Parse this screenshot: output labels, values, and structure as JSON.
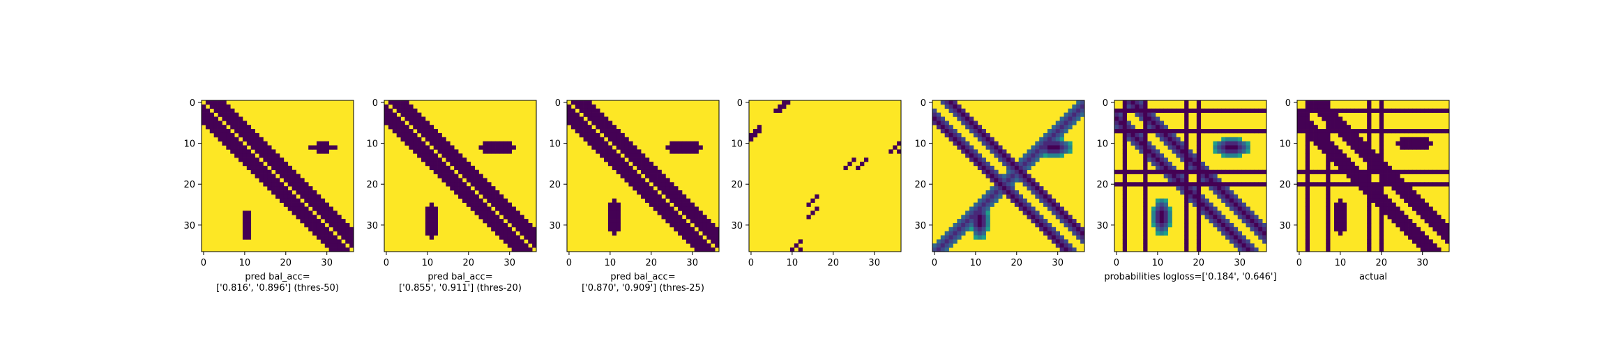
{
  "figure": {
    "colors": {
      "low": "#440154",
      "high": "#fde725",
      "viridis": [
        "#440154",
        "#482878",
        "#3e4989",
        "#31688e",
        "#26828e",
        "#1f9e89",
        "#35b779",
        "#6ece58",
        "#b5de2b",
        "#fde725"
      ]
    }
  },
  "chart_data": [
    {
      "type": "heatmap",
      "colormap": "viridis",
      "size": 37,
      "xticks": [
        0,
        10,
        20,
        30
      ],
      "yticks": [
        0,
        10,
        20,
        30
      ],
      "xlabel_lines": [
        "pred bal_acc=",
        "['0.816', '0.896'] (thres-50)"
      ],
      "features": {
        "diag": [
          1,
          4.0
        ],
        "anti": null,
        "blobs": [
          [
            29,
            11,
            3.5,
            1.2
          ],
          [
            10.5,
            30,
            1.2,
            3.5
          ]
        ],
        "stripes": [],
        "crossgaps": []
      }
    },
    {
      "type": "heatmap",
      "colormap": "viridis",
      "size": 37,
      "xticks": [
        0,
        10,
        20,
        30
      ],
      "yticks": [
        0,
        10,
        20,
        30
      ],
      "xlabel_lines": [
        "pred bal_acc=",
        "['0.855', '0.911'] (thres-20)"
      ],
      "features": {
        "diag": [
          1,
          4.5
        ],
        "anti": null,
        "blobs": [
          [
            27,
            11,
            4.8,
            1.4
          ],
          [
            11,
            29,
            1.4,
            4.8
          ]
        ],
        "stripes": [],
        "crossgaps": []
      }
    },
    {
      "type": "heatmap",
      "colormap": "viridis",
      "size": 37,
      "xticks": [
        0,
        10,
        20,
        30
      ],
      "yticks": [
        0,
        10,
        20,
        30
      ],
      "xlabel_lines": [
        "pred bal_acc=",
        "['0.870', '0.909'] (thres-25)"
      ],
      "features": {
        "diag": [
          1,
          4.5
        ],
        "anti": null,
        "blobs": [
          [
            28,
            11,
            4.8,
            1.4
          ],
          [
            11,
            28,
            1.4,
            4.8
          ]
        ],
        "stripes": [],
        "crossgaps": []
      }
    },
    {
      "type": "heatmap",
      "colormap": "viridis",
      "size": 37,
      "xticks": [
        0,
        10,
        20,
        30
      ],
      "yticks": [
        0,
        10,
        20,
        30
      ],
      "xlabel_lines": [],
      "features": {
        "diag": null,
        "anti": null,
        "blobs": [],
        "stripes": [],
        "crossgaps": [],
        "dots": [
          [
            0,
            9
          ],
          [
            1,
            8
          ],
          [
            2,
            7
          ],
          [
            6,
            2
          ],
          [
            7,
            1
          ],
          [
            8,
            0
          ],
          [
            13,
            37
          ],
          [
            12,
            36
          ],
          [
            11,
            35
          ],
          [
            16,
            26
          ],
          [
            15,
            27
          ],
          [
            14,
            28
          ],
          [
            23,
            16
          ],
          [
            24,
            15
          ],
          [
            25,
            14
          ],
          [
            34,
            12
          ],
          [
            35,
            11
          ],
          [
            36,
            10
          ]
        ]
      }
    },
    {
      "type": "heatmap",
      "colormap": "viridis",
      "size": 37,
      "xticks": [
        0,
        10,
        20,
        30
      ],
      "yticks": [
        0,
        10,
        20,
        30
      ],
      "xlabel_lines": [],
      "features": {
        "diag": [
          2,
          3.5
        ],
        "anti": [
          37,
          2.5
        ],
        "blobs": [
          [
            29,
            11,
            5.0,
            2.5
          ],
          [
            11,
            29,
            2.5,
            5.0
          ]
        ],
        "stripes": [],
        "crossgaps": [],
        "continuous": true
      }
    },
    {
      "type": "heatmap",
      "colormap": "viridis",
      "size": 37,
      "xticks": [
        0,
        10,
        20,
        30
      ],
      "yticks": [
        0,
        10,
        20,
        30
      ],
      "xlabel_lines": [
        "probabilities logloss=['0.184', '0.646']"
      ],
      "features": {
        "diag": [
          2,
          4.0
        ],
        "anti": null,
        "blobs": [
          [
            28,
            11,
            5.0,
            2.5
          ],
          [
            11,
            28,
            2.5,
            5.0
          ]
        ],
        "stripes": [
          2,
          7,
          17,
          20
        ],
        "crossgaps": [],
        "continuous": true
      }
    },
    {
      "type": "heatmap",
      "colormap": "viridis",
      "size": 37,
      "xticks": [
        0,
        10,
        20,
        30
      ],
      "yticks": [
        0,
        10,
        20,
        30
      ],
      "xlabel_lines": [
        "actual"
      ],
      "features": {
        "diag": [
          2,
          4.0
        ],
        "anti": null,
        "blobs": [
          [
            28,
            10,
            5.0,
            1.8
          ],
          [
            10,
            28,
            1.8,
            5.0
          ]
        ],
        "stripes": [
          2,
          7,
          17,
          20
        ],
        "crossgaps": []
      }
    }
  ]
}
